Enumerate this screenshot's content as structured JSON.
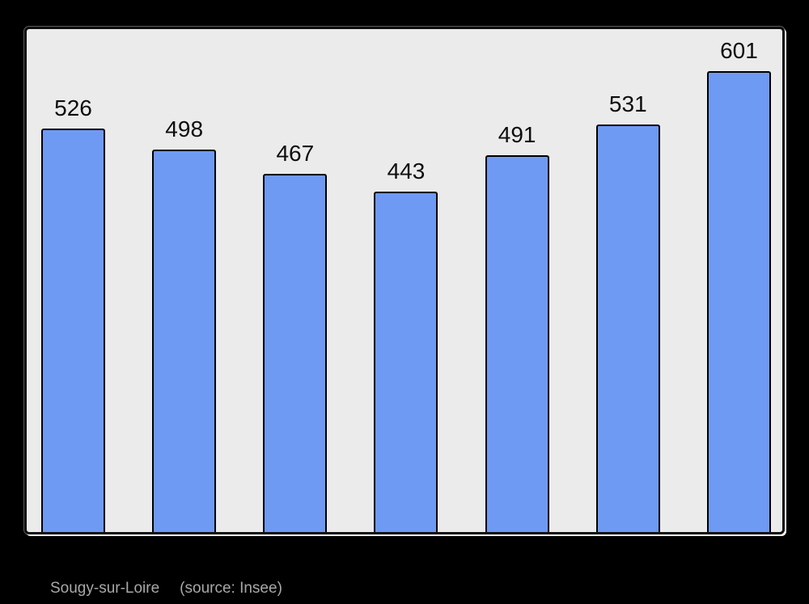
{
  "page": {
    "background_color": "#000000"
  },
  "chart_data": {
    "type": "bar",
    "categories": [
      "",
      "",
      "",
      "",
      "",
      "",
      ""
    ],
    "values": [
      526,
      498,
      467,
      443,
      491,
      531,
      601
    ],
    "data_labels": [
      "526",
      "498",
      "467",
      "443",
      "491",
      "531",
      "601"
    ],
    "title": "",
    "xlabel": "",
    "ylabel": "",
    "ylim": [
      0,
      656
    ],
    "grid": false,
    "legend": false,
    "bar_color": "#6f9af3",
    "bar_border_color": "#000000",
    "plot_background_color": "#ebebeb",
    "plot_border_color": "#0d0d0d",
    "label_color": "#0d0d0d"
  },
  "footer": {
    "title": "Sougy-sur-Loire",
    "source": "(source: Insee)",
    "text_color": "#a8a8a8"
  }
}
